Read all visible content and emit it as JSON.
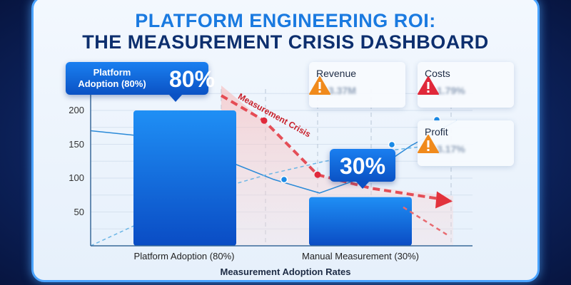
{
  "title_line1": "PLATFORM ENGINEERING ROI:",
  "title_line2": "THE MEASUREMENT CRISIS DASHBOARD",
  "callouts": {
    "platform": {
      "label": "Platform Adoption (80%)",
      "value": "80%"
    },
    "manual": {
      "value": "30%"
    }
  },
  "annotation": "Measurement Crisis",
  "cards": [
    {
      "name": "Revenue",
      "value": "3.37M",
      "direction": "down",
      "color": "#f08a1c",
      "icon": "warning-icon"
    },
    {
      "name": "Costs",
      "value": "1.79%",
      "direction": "up",
      "color": "#e0283a",
      "icon": "warning-icon"
    },
    {
      "name": "Profit",
      "value": "3.17%",
      "direction": "down",
      "color": "#f08a1c",
      "icon": "warning-icon"
    }
  ],
  "chart_data": {
    "type": "bar",
    "categories": [
      "Platform Adoption (80%)",
      "Manual Measurement (30%)"
    ],
    "values": [
      200,
      72
    ],
    "xlabel": "Measurement Adoption Rates",
    "ylabel": "",
    "ylim": [
      0,
      230
    ],
    "yticks": [
      50,
      100,
      150,
      200
    ],
    "grid": true,
    "bar_color": "#0d62d8",
    "overlay_lines": {
      "trend_solid": [
        170,
        163,
        143,
        125,
        98,
        78,
        102,
        148,
        185
      ],
      "trend_dashed": [
        0,
        40,
        80,
        105,
        125,
        140,
        150
      ],
      "crisis_curve": [
        222,
        185,
        105,
        85,
        70
      ],
      "crisis_low": [
        57,
        35
      ]
    },
    "accent_colors": {
      "trend": "#2a8ad8",
      "crisis": "#e2323c"
    }
  }
}
